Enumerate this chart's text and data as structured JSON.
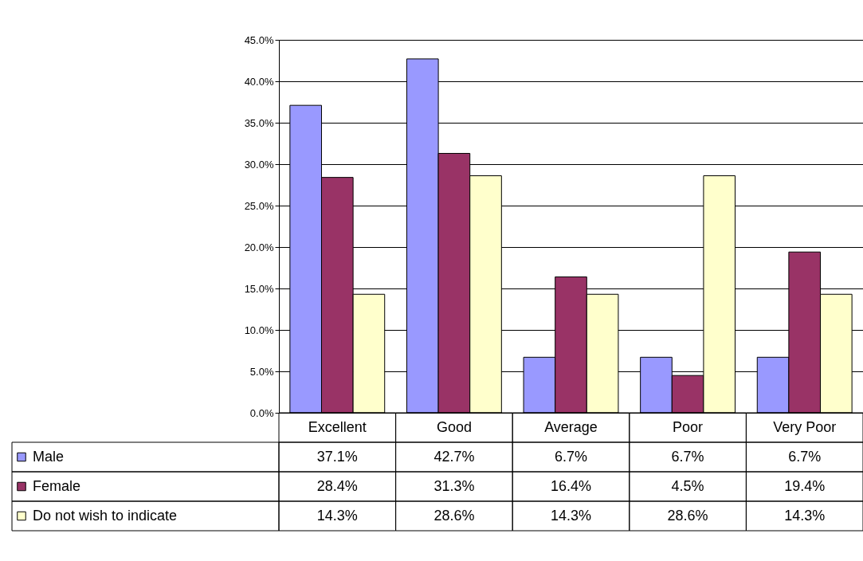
{
  "chart_data": {
    "type": "bar",
    "categories": [
      "Excellent",
      "Good",
      "Average",
      "Poor",
      "Very Poor"
    ],
    "series": [
      {
        "name": "Male",
        "color": "#9999ff",
        "values": [
          37.1,
          42.7,
          6.7,
          6.7,
          6.7
        ],
        "value_labels": [
          "37.1%",
          "42.7%",
          "6.7%",
          "6.7%",
          "6.7%"
        ]
      },
      {
        "name": "Female",
        "color": "#993366",
        "values": [
          28.4,
          31.3,
          16.4,
          4.5,
          19.4
        ],
        "value_labels": [
          "28.4%",
          "31.3%",
          "16.4%",
          "4.5%",
          "19.4%"
        ]
      },
      {
        "name": "Do not wish to indicate",
        "color": "#ffffcc",
        "values": [
          14.3,
          28.6,
          14.3,
          28.6,
          14.3
        ],
        "value_labels": [
          "14.3%",
          "28.6%",
          "14.3%",
          "28.6%",
          "14.3%"
        ]
      }
    ],
    "ylim": [
      0,
      45
    ],
    "yticks": [
      {
        "value": 0,
        "label": "0.0%"
      },
      {
        "value": 5,
        "label": "5.0%"
      },
      {
        "value": 10,
        "label": "10.0%"
      },
      {
        "value": 15,
        "label": "15.0%"
      },
      {
        "value": 20,
        "label": "20.0%"
      },
      {
        "value": 25,
        "label": "25.0%"
      },
      {
        "value": 30,
        "label": "30.0%"
      },
      {
        "value": 35,
        "label": "35.0%"
      },
      {
        "value": 40,
        "label": "40.0%"
      },
      {
        "value": 45,
        "label": "45.0%"
      }
    ],
    "grid": "y",
    "legend": "bottom"
  }
}
